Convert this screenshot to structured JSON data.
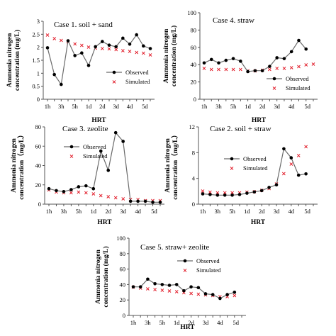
{
  "colors": {
    "observed": "#000000",
    "simulated": "#e0101e",
    "axis": "#555555",
    "line": "#6a6a6a"
  },
  "legend": {
    "observed": "Observed",
    "simulated": "Simulated"
  },
  "chart_data": [
    {
      "type": "line",
      "title": "Case 1. soil + sand",
      "xlabel": "HRT",
      "ylabel": [
        "Ammonia nitrogen",
        "concentration (mg/L)"
      ],
      "ylim": [
        0,
        3
      ],
      "yticks": [
        0,
        0.5,
        1,
        1.5,
        2,
        2.5,
        3
      ],
      "ytick_labels": [
        "0",
        "0.5",
        "1",
        "1.5",
        "2",
        "2.5",
        "3"
      ],
      "x_tick_labels": [
        "1h",
        "3h",
        "5h",
        "1d",
        "2d",
        "3d",
        "4d",
        "5d"
      ],
      "n_points": 16,
      "series": [
        {
          "name": "Observed",
          "values": [
            1.98,
            0.95,
            0.57,
            2.25,
            1.68,
            1.78,
            1.3,
            2.02,
            2.22,
            2.08,
            2.02,
            2.35,
            2.12,
            2.48,
            2.05,
            1.95
          ]
        },
        {
          "name": "Simulated",
          "values": [
            2.48,
            2.35,
            2.28,
            2.22,
            2.14,
            2.08,
            2.02,
            1.98,
            1.96,
            1.95,
            1.92,
            1.88,
            1.85,
            1.82,
            1.78,
            1.72
          ]
        }
      ]
    },
    {
      "type": "line",
      "title": "Case 4. straw",
      "xlabel": "HRT",
      "ylabel": [
        "Ammonia nitrogen",
        "concentration (mg/L)"
      ],
      "ylim": [
        0,
        100
      ],
      "yticks": [
        0,
        20,
        40,
        60,
        80,
        100
      ],
      "ytick_labels": [
        "0",
        "20",
        "40",
        "60",
        "80",
        "100"
      ],
      "x_tick_labels": [
        "1h",
        "3h",
        "5h",
        "1d",
        "2d",
        "3d",
        "4d",
        "5d"
      ],
      "n_points": 16,
      "series": [
        {
          "name": "Observed",
          "values": [
            42,
            46,
            42,
            45,
            47,
            44,
            32,
            33,
            33,
            38,
            48,
            47,
            55,
            68,
            58,
            58
          ]
        },
        {
          "name": "Simulated",
          "values": [
            36,
            35,
            35,
            35,
            35,
            35,
            33,
            33,
            34,
            35,
            36,
            36,
            37,
            38,
            40,
            41
          ]
        }
      ],
      "obs_points": 15
    },
    {
      "type": "line",
      "title": "Case 3. zeolite",
      "xlabel": "HRT",
      "ylabel": [
        "Ammonia nitrogen",
        "concentration（mg/L）"
      ],
      "ylim": [
        0,
        80
      ],
      "yticks": [
        0,
        20,
        40,
        60,
        80
      ],
      "ytick_labels": [
        "0",
        "20",
        "40",
        "60",
        "80"
      ],
      "x_tick_labels": [
        "1h",
        "3h",
        "5h",
        "1d",
        "2d",
        "3d",
        "4d",
        "5d"
      ],
      "n_points": 16,
      "series": [
        {
          "name": "Observed",
          "values": [
            16,
            14,
            13,
            15,
            18,
            19,
            16,
            55,
            35,
            74,
            65,
            3,
            3,
            3,
            2,
            2
          ]
        },
        {
          "name": "Simulated",
          "values": [
            15,
            13,
            12,
            12,
            13,
            12,
            11,
            9,
            8,
            7,
            6,
            5,
            5,
            4,
            4,
            4
          ]
        }
      ]
    },
    {
      "type": "line",
      "title": "Case 2. soil + straw",
      "xlabel": "HRT",
      "ylabel": [
        "Ammonia nitrogen",
        "concentration（mg/L）"
      ],
      "ylim": [
        0,
        12
      ],
      "yticks": [
        0,
        4,
        8,
        12
      ],
      "ytick_labels": [
        "0",
        "4",
        "8",
        "12"
      ],
      "x_tick_labels": [
        "1h",
        "3h",
        "5h",
        "1d",
        "2d",
        "3d",
        "4d",
        "5d"
      ],
      "n_points": 16,
      "series": [
        {
          "name": "Observed",
          "values": [
            1.6,
            1.5,
            1.4,
            1.4,
            1.4,
            1.5,
            1.7,
            1.9,
            2.1,
            2.6,
            3.0,
            8.6,
            7.2,
            4.5,
            4.7,
            4.7
          ]
        },
        {
          "name": "Simulated",
          "values": [
            2.1,
            1.9,
            1.8,
            1.8,
            1.8,
            1.8,
            1.9,
            2.0,
            2.2,
            2.5,
            3.2,
            4.8,
            6.3,
            7.6,
            9.0,
            9.0
          ]
        }
      ],
      "obs_points": 15,
      "sim_points": 15
    },
    {
      "type": "line",
      "title": "Case 5. straw+ zeolite",
      "xlabel": "HRT",
      "ylabel": [
        "Ammonia nitrogen",
        "concentration (mg/L)"
      ],
      "ylim": [
        0,
        100
      ],
      "yticks": [
        0,
        20,
        40,
        60,
        80,
        100
      ],
      "ytick_labels": [
        "0",
        "20",
        "40",
        "60",
        "80",
        "100"
      ],
      "x_tick_labels": [
        "1h",
        "3h",
        "5h",
        "1d",
        "2d",
        "3d",
        "4d",
        "5d"
      ],
      "n_points": 16,
      "series": [
        {
          "name": "Observed",
          "values": [
            37,
            37,
            47,
            41,
            40,
            39,
            40,
            32,
            37,
            36,
            28,
            27,
            22,
            27,
            30,
            30
          ]
        },
        {
          "name": "Simulated",
          "values": [
            37,
            36,
            35,
            34,
            33,
            32,
            31,
            30,
            29,
            28,
            27,
            26,
            25,
            25,
            26,
            28
          ]
        }
      ],
      "obs_points": 15,
      "sim_points": 15
    }
  ]
}
